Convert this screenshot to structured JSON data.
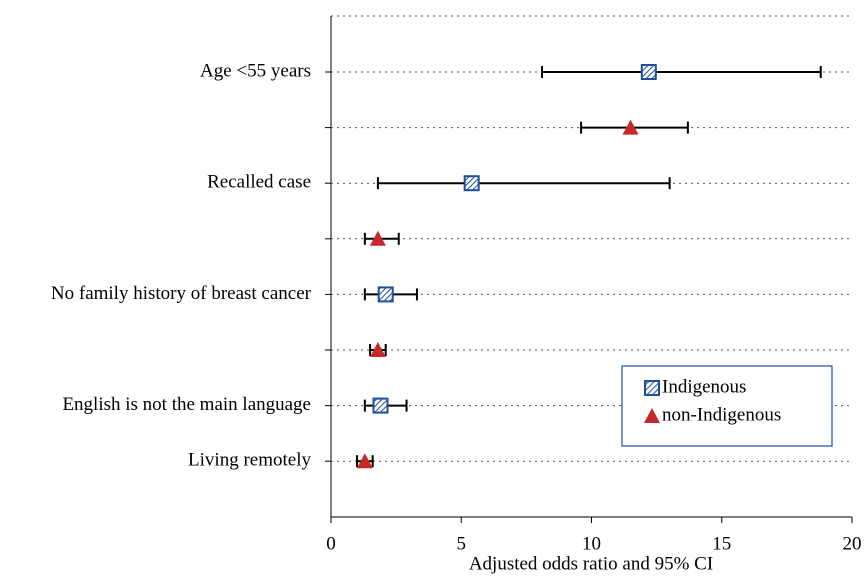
{
  "chart_data": {
    "type": "forest",
    "categories": [
      "Age <55 years",
      null,
      "Recalled case",
      null,
      "No family history of breast cancer",
      null,
      "English is not the main language",
      "Living remotely"
    ],
    "series": [
      {
        "name": "Indigenous",
        "color": "#1f4e9a",
        "marker": "square",
        "values": [
          12.2,
          null,
          5.4,
          null,
          2.1,
          null,
          1.9,
          null
        ],
        "lower": [
          8.1,
          null,
          1.8,
          null,
          1.3,
          null,
          1.3,
          null
        ],
        "upper": [
          18.8,
          null,
          13.0,
          null,
          3.3,
          null,
          2.9,
          null
        ]
      },
      {
        "name": "non-Indigenous",
        "color": "#c8282a",
        "marker": "triangle",
        "values": [
          null,
          11.5,
          null,
          1.8,
          null,
          1.8,
          null,
          1.3
        ],
        "lower": [
          null,
          9.6,
          null,
          1.3,
          null,
          1.5,
          null,
          1.0
        ],
        "upper": [
          null,
          13.7,
          null,
          2.6,
          null,
          2.1,
          null,
          1.6
        ]
      }
    ],
    "xlabel": "Adjusted odds ratio and 95% CI",
    "xlim": [
      0,
      20
    ],
    "xticks": [
      0,
      5,
      10,
      15,
      20
    ],
    "grid": true,
    "legend": "lower right"
  }
}
